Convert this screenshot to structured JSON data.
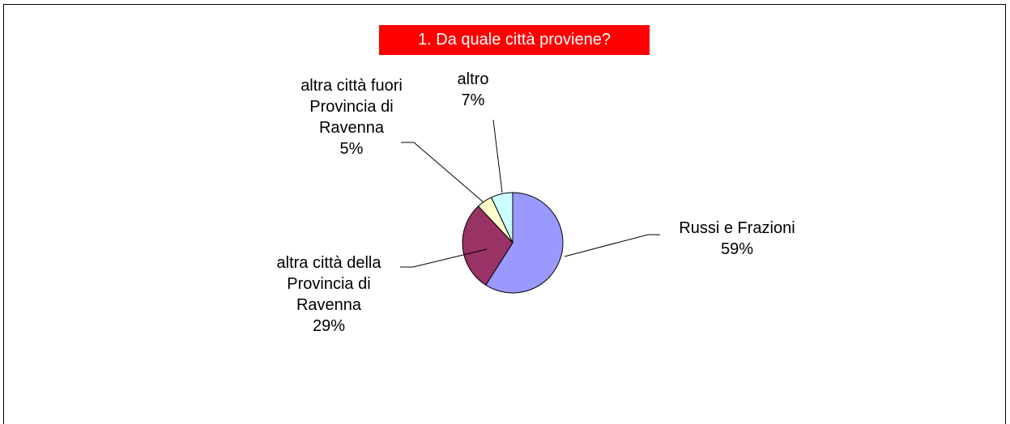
{
  "chart_data": {
    "type": "pie",
    "title": "1. Da quale città proviene?",
    "slices": [
      {
        "label_lines": [
          "Russi e Frazioni"
        ],
        "value_label": "59%",
        "value": 59,
        "color": "#9999ff"
      },
      {
        "label_lines": [
          "altra città della",
          "Provincia di",
          "Ravenna"
        ],
        "value_label": "29%",
        "value": 29,
        "color": "#993366"
      },
      {
        "label_lines": [
          "altra città fuori",
          "Provincia di",
          "Ravenna"
        ],
        "value_label": "5%",
        "value": 5,
        "color": "#ffffcc"
      },
      {
        "label_lines": [
          "altro"
        ],
        "value_label": "7%",
        "value": 7,
        "color": "#ccffff"
      }
    ]
  }
}
